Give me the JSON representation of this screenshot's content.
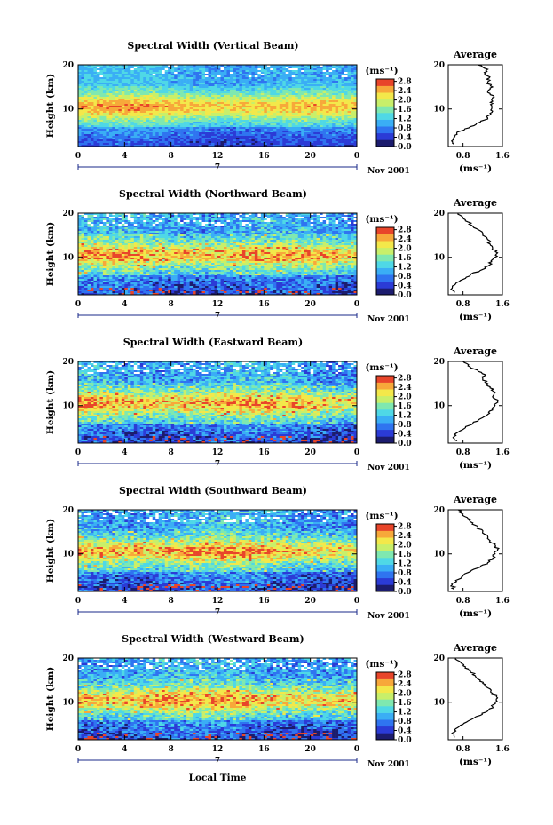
{
  "figure": {
    "xlabel": "Local Time",
    "date_label": "Nov 2001",
    "day_label": "7",
    "ylabel": "Height (km)",
    "avg_title": "Average",
    "avg_xlabel": "(ms⁻¹)",
    "cbar_unit": "(ms⁻¹)"
  },
  "colormap": [
    "#1c1c6e",
    "#2b3bd6",
    "#2f74f0",
    "#3aaef5",
    "#4fd8e6",
    "#7fe8b0",
    "#c8ef6a",
    "#f3e84a",
    "#f7a83a",
    "#e8452a"
  ],
  "chart_data": [
    {
      "type": "heatmap",
      "title": "Spectral Width (Vertical Beam)",
      "xlabel": "Local Time",
      "ylabel": "Height (km)",
      "x_ticks": [
        "0",
        "4",
        "8",
        "12",
        "16",
        "20",
        "0"
      ],
      "xlim": [
        0,
        24
      ],
      "y_ticks": [
        "10",
        "20"
      ],
      "ylim": [
        1.5,
        20
      ],
      "colorbar": {
        "unit": "(ms⁻¹)",
        "ticks": [
          "0.0",
          "0.4",
          "0.8",
          "1.2",
          "1.6",
          "2.0",
          "2.4",
          "2.8"
        ],
        "range": [
          0,
          2.9
        ]
      },
      "profile": {
        "title": "Average",
        "xlabel": "(ms⁻¹)",
        "x_ticks": [
          "0.8",
          "1.6"
        ],
        "xlim": [
          0.5,
          1.6
        ],
        "y_ticks": [
          "10",
          "20"
        ],
        "ylim": [
          1.5,
          20
        ],
        "points": [
          [
            0.62,
            2
          ],
          [
            0.6,
            3
          ],
          [
            0.62,
            4
          ],
          [
            0.75,
            5
          ],
          [
            0.95,
            6
          ],
          [
            1.15,
            7
          ],
          [
            1.3,
            8
          ],
          [
            1.35,
            9
          ],
          [
            1.38,
            10
          ],
          [
            1.36,
            11
          ],
          [
            1.38,
            12
          ],
          [
            1.42,
            13
          ],
          [
            1.3,
            14
          ],
          [
            1.4,
            15
          ],
          [
            1.3,
            16
          ],
          [
            1.33,
            17
          ],
          [
            1.25,
            18
          ],
          [
            1.3,
            19
          ],
          [
            1.1,
            20
          ]
        ]
      }
    },
    {
      "type": "heatmap",
      "title": "Spectral Width (Northward Beam)",
      "xlabel": "Local Time",
      "ylabel": "Height (km)",
      "x_ticks": [
        "0",
        "4",
        "8",
        "12",
        "16",
        "20",
        "0"
      ],
      "xlim": [
        0,
        24
      ],
      "y_ticks": [
        "10",
        "20"
      ],
      "ylim": [
        1.5,
        20
      ],
      "colorbar": {
        "unit": "(ms⁻¹)",
        "ticks": [
          "0.0",
          "0.4",
          "0.8",
          "1.2",
          "1.6",
          "2.0",
          "2.4",
          "2.8"
        ],
        "range": [
          0,
          2.9
        ]
      },
      "profile": {
        "title": "Average",
        "xlabel": "(ms⁻¹)",
        "x_ticks": [
          "0.8",
          "1.6"
        ],
        "xlim": [
          0.5,
          1.6
        ],
        "y_ticks": [
          "10",
          "20"
        ],
        "ylim": [
          1.5,
          20
        ],
        "points": [
          [
            0.62,
            2
          ],
          [
            0.58,
            3
          ],
          [
            0.65,
            4
          ],
          [
            0.8,
            5
          ],
          [
            0.95,
            6
          ],
          [
            1.15,
            7
          ],
          [
            1.3,
            8
          ],
          [
            1.38,
            9
          ],
          [
            1.45,
            10
          ],
          [
            1.5,
            11
          ],
          [
            1.4,
            12
          ],
          [
            1.35,
            13
          ],
          [
            1.3,
            14
          ],
          [
            1.2,
            15
          ],
          [
            1.15,
            16
          ],
          [
            1.0,
            17
          ],
          [
            0.9,
            18
          ],
          [
            0.8,
            19
          ],
          [
            0.7,
            20
          ]
        ]
      }
    },
    {
      "type": "heatmap",
      "title": "Spectral Width (Eastward Beam)",
      "xlabel": "Local Time",
      "ylabel": "Height (km)",
      "x_ticks": [
        "0",
        "4",
        "8",
        "12",
        "16",
        "20",
        "0"
      ],
      "xlim": [
        0,
        24
      ],
      "y_ticks": [
        "10",
        "20"
      ],
      "ylim": [
        1.5,
        20
      ],
      "colorbar": {
        "unit": "(ms⁻¹)",
        "ticks": [
          "0.0",
          "0.4",
          "0.8",
          "1.2",
          "1.6",
          "2.0",
          "2.4",
          "2.8"
        ],
        "range": [
          0,
          2.9
        ]
      },
      "profile": {
        "title": "Average",
        "xlabel": "(ms⁻¹)",
        "x_ticks": [
          "0.8",
          "1.6"
        ],
        "xlim": [
          0.5,
          1.6
        ],
        "y_ticks": [
          "10",
          "20"
        ],
        "ylim": [
          1.5,
          20
        ],
        "points": [
          [
            0.68,
            2
          ],
          [
            0.62,
            3
          ],
          [
            0.7,
            4
          ],
          [
            0.85,
            5
          ],
          [
            1.0,
            6
          ],
          [
            1.15,
            7
          ],
          [
            1.3,
            8
          ],
          [
            1.4,
            9
          ],
          [
            1.45,
            10
          ],
          [
            1.5,
            11
          ],
          [
            1.4,
            12
          ],
          [
            1.45,
            13
          ],
          [
            1.35,
            14
          ],
          [
            1.3,
            15
          ],
          [
            1.2,
            16
          ],
          [
            1.25,
            17
          ],
          [
            1.1,
            18
          ],
          [
            0.9,
            19
          ],
          [
            0.8,
            20
          ]
        ]
      }
    },
    {
      "type": "heatmap",
      "title": "Spectral Width (Southward Beam)",
      "xlabel": "Local Time",
      "ylabel": "Height (km)",
      "x_ticks": [
        "0",
        "4",
        "8",
        "12",
        "16",
        "20",
        "0"
      ],
      "xlim": [
        0,
        24
      ],
      "y_ticks": [
        "10",
        "20"
      ],
      "ylim": [
        1.5,
        20
      ],
      "colorbar": {
        "unit": "(ms⁻¹)",
        "ticks": [
          "0.0",
          "0.4",
          "0.8",
          "1.2",
          "1.6",
          "2.0",
          "2.4",
          "2.8"
        ],
        "range": [
          0,
          2.9
        ]
      },
      "profile": {
        "title": "Average",
        "xlabel": "(ms⁻¹)",
        "x_ticks": [
          "0.8",
          "1.6"
        ],
        "xlim": [
          0.5,
          1.6
        ],
        "y_ticks": [
          "10",
          "20"
        ],
        "ylim": [
          1.5,
          20
        ],
        "points": [
          [
            0.62,
            2
          ],
          [
            0.58,
            3
          ],
          [
            0.65,
            4
          ],
          [
            0.8,
            5
          ],
          [
            0.95,
            6
          ],
          [
            1.15,
            7
          ],
          [
            1.3,
            8
          ],
          [
            1.4,
            9
          ],
          [
            1.45,
            10
          ],
          [
            1.5,
            11
          ],
          [
            1.45,
            12
          ],
          [
            1.35,
            13
          ],
          [
            1.3,
            14
          ],
          [
            1.2,
            15
          ],
          [
            1.1,
            16
          ],
          [
            1.0,
            17
          ],
          [
            0.9,
            18
          ],
          [
            0.8,
            19
          ],
          [
            0.7,
            20
          ]
        ]
      }
    },
    {
      "type": "heatmap",
      "title": "Spectral Width (Westward Beam)",
      "xlabel": "Local Time",
      "ylabel": "Height (km)",
      "x_ticks": [
        "0",
        "4",
        "8",
        "12",
        "16",
        "20",
        "0"
      ],
      "xlim": [
        0,
        24
      ],
      "y_ticks": [
        "10",
        "20"
      ],
      "ylim": [
        1.5,
        20
      ],
      "colorbar": {
        "unit": "(ms⁻¹)",
        "ticks": [
          "0.0",
          "0.4",
          "0.8",
          "1.2",
          "1.6",
          "2.0",
          "2.4",
          "2.8"
        ],
        "range": [
          0,
          2.9
        ]
      },
      "profile": {
        "title": "Average",
        "xlabel": "(ms⁻¹)",
        "x_ticks": [
          "0.8",
          "1.6"
        ],
        "xlim": [
          0.5,
          1.6
        ],
        "y_ticks": [
          "10",
          "20"
        ],
        "ylim": [
          1.5,
          20
        ],
        "points": [
          [
            0.62,
            2
          ],
          [
            0.58,
            3
          ],
          [
            0.65,
            4
          ],
          [
            0.8,
            5
          ],
          [
            0.95,
            6
          ],
          [
            1.15,
            7
          ],
          [
            1.3,
            8
          ],
          [
            1.4,
            9
          ],
          [
            1.45,
            10
          ],
          [
            1.5,
            11
          ],
          [
            1.4,
            12
          ],
          [
            1.35,
            13
          ],
          [
            1.25,
            14
          ],
          [
            1.15,
            15
          ],
          [
            1.05,
            16
          ],
          [
            0.95,
            17
          ],
          [
            0.85,
            18
          ],
          [
            0.75,
            19
          ],
          [
            0.65,
            20
          ]
        ]
      }
    }
  ]
}
